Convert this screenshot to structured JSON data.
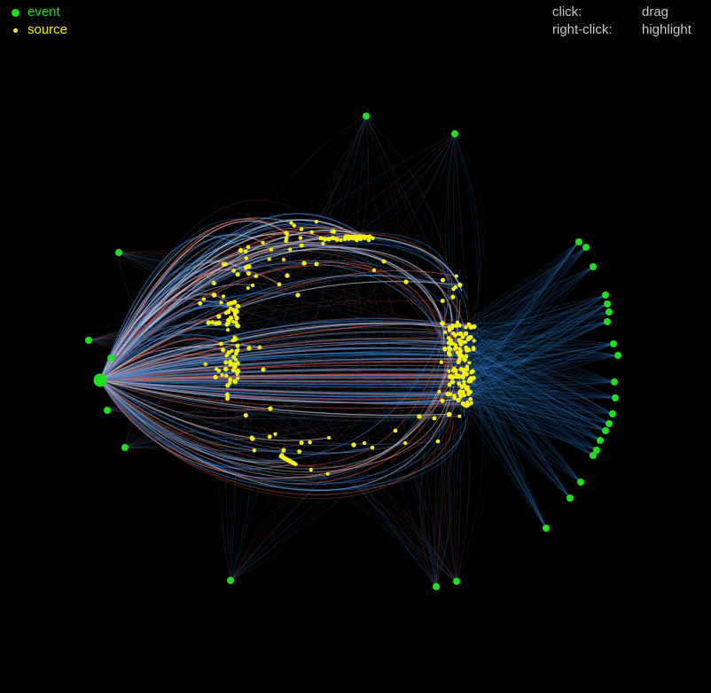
{
  "legend": [
    {
      "label": "event",
      "color": "#1ee01e"
    },
    {
      "label": "source",
      "color": "#f3f00d"
    }
  ],
  "help": [
    {
      "action": "click:",
      "effect": "drag"
    },
    {
      "action": "right-click:",
      "effect": "highlight"
    }
  ],
  "colors": {
    "background": "#000000",
    "event_node": "#1ee01e",
    "source_node": "#f3f00d",
    "edge_blue": "#2f7fd0",
    "edge_light": "#cfe3f7",
    "edge_red": "#e0533a",
    "edge_pink": "#f0b0b8"
  }
}
